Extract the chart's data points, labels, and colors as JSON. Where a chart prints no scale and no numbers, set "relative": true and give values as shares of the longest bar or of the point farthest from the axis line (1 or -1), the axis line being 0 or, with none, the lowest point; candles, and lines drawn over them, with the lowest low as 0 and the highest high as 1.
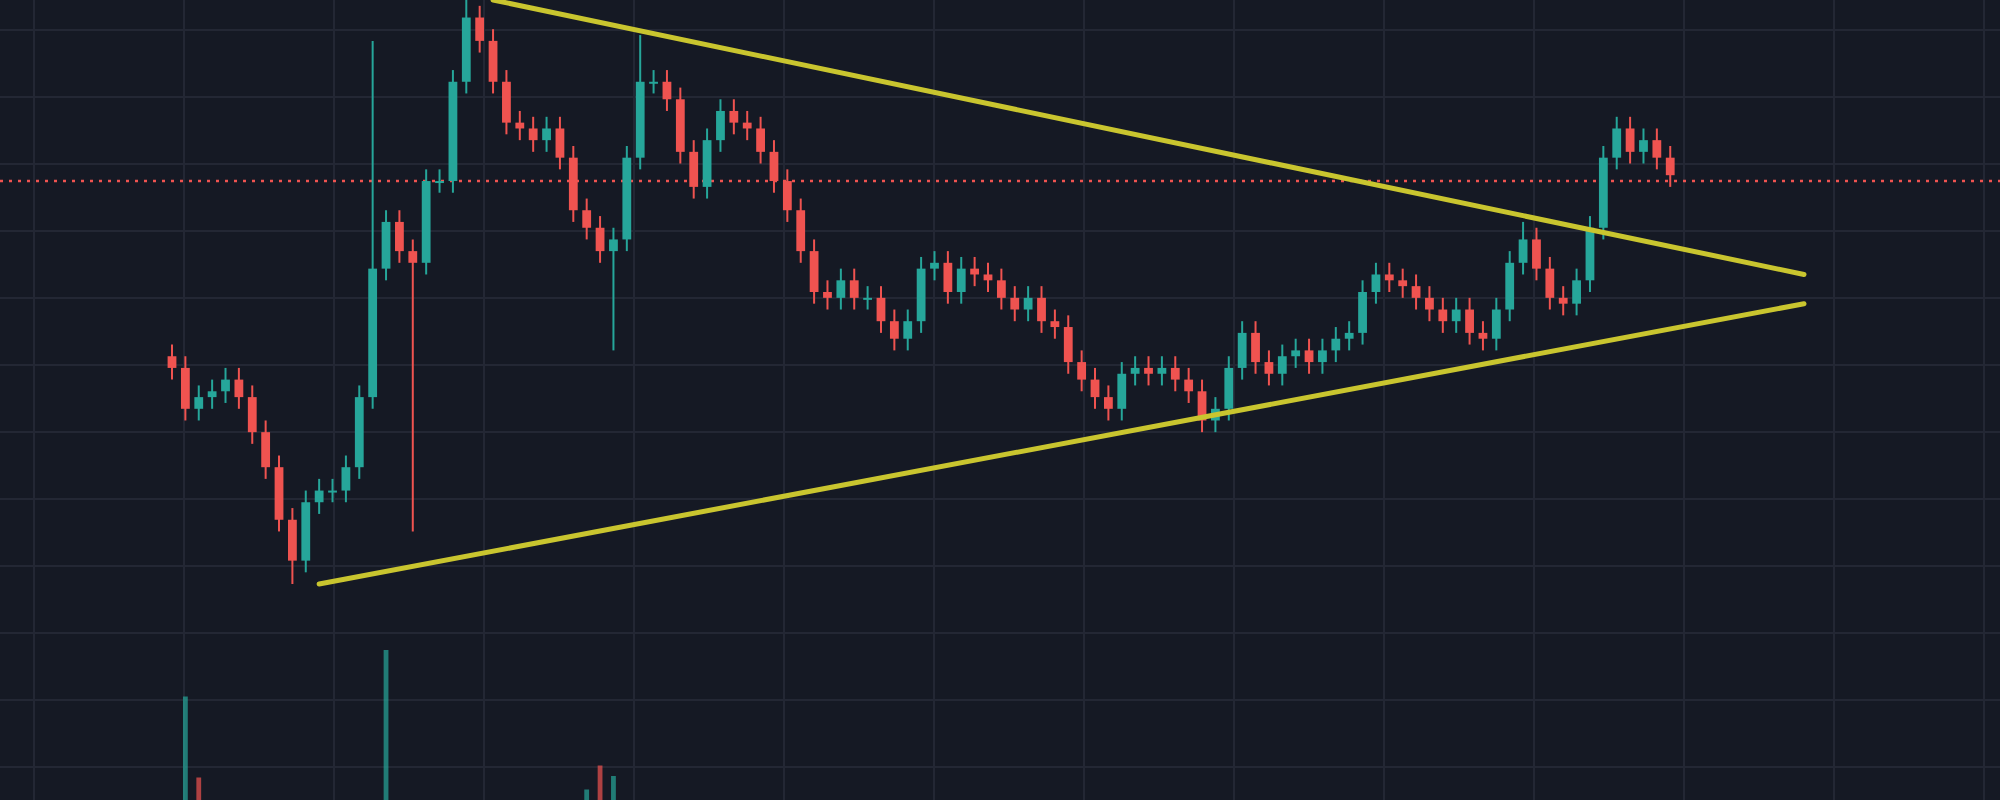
{
  "chart_data": [
    {
      "type": "candlestick",
      "relative": true,
      "grid": true,
      "categories": [
        null,
        null,
        null,
        null,
        null,
        null,
        null,
        null,
        null,
        null,
        null,
        null,
        null,
        null,
        null,
        null,
        null,
        null,
        null,
        null,
        null,
        null,
        null,
        null,
        null,
        null,
        null,
        null,
        null,
        null,
        null,
        null,
        null,
        null,
        null,
        null,
        null,
        null,
        null,
        null,
        null,
        null,
        null,
        null,
        null,
        null,
        null,
        null,
        null,
        null,
        null,
        null,
        null,
        null,
        null,
        null,
        null,
        null,
        null,
        null,
        null,
        null,
        null,
        null,
        null,
        null,
        null,
        null,
        null,
        null,
        null,
        null,
        null,
        null,
        null,
        null,
        null,
        null,
        null,
        null,
        null,
        null,
        null,
        null,
        null,
        null,
        null,
        null,
        null,
        null,
        null,
        null,
        null,
        null,
        null,
        null,
        null,
        null,
        null,
        null,
        null,
        null,
        null,
        null,
        null,
        null,
        null,
        null,
        null,
        null,
        null,
        null,
        null,
        null,
        null,
        null,
        null,
        null,
        null,
        null,
        null,
        null,
        null
      ],
      "ohlc": [
        [
          0.39,
          0.41,
          0.35,
          0.37
        ],
        [
          0.37,
          0.39,
          0.28,
          0.3
        ],
        [
          0.3,
          0.34,
          0.28,
          0.32
        ],
        [
          0.32,
          0.35,
          0.3,
          0.33
        ],
        [
          0.33,
          0.37,
          0.31,
          0.35
        ],
        [
          0.35,
          0.37,
          0.3,
          0.32
        ],
        [
          0.32,
          0.34,
          0.24,
          0.26
        ],
        [
          0.26,
          0.28,
          0.18,
          0.2
        ],
        [
          0.2,
          0.22,
          0.09,
          0.11
        ],
        [
          0.11,
          0.13,
          0.0,
          0.04
        ],
        [
          0.04,
          0.16,
          0.02,
          0.14
        ],
        [
          0.14,
          0.18,
          0.12,
          0.16
        ],
        [
          0.16,
          0.18,
          0.14,
          0.16
        ],
        [
          0.16,
          0.22,
          0.14,
          0.2
        ],
        [
          0.2,
          0.34,
          0.18,
          0.32
        ],
        [
          0.32,
          0.93,
          0.3,
          0.54
        ],
        [
          0.54,
          0.64,
          0.52,
          0.62
        ],
        [
          0.62,
          0.64,
          0.55,
          0.57
        ],
        [
          0.57,
          0.59,
          0.09,
          0.55
        ],
        [
          0.55,
          0.71,
          0.53,
          0.69
        ],
        [
          0.69,
          0.71,
          0.67,
          0.69
        ],
        [
          0.69,
          0.88,
          0.67,
          0.86
        ],
        [
          0.86,
          1.0,
          0.84,
          0.97
        ],
        [
          0.97,
          0.99,
          0.91,
          0.93
        ],
        [
          0.93,
          0.95,
          0.84,
          0.86
        ],
        [
          0.86,
          0.88,
          0.77,
          0.79
        ],
        [
          0.79,
          0.81,
          0.76,
          0.78
        ],
        [
          0.78,
          0.8,
          0.74,
          0.76
        ],
        [
          0.76,
          0.8,
          0.74,
          0.78
        ],
        [
          0.78,
          0.8,
          0.71,
          0.73
        ],
        [
          0.73,
          0.75,
          0.62,
          0.64
        ],
        [
          0.64,
          0.66,
          0.59,
          0.61
        ],
        [
          0.61,
          0.63,
          0.55,
          0.57
        ],
        [
          0.57,
          0.61,
          0.4,
          0.59
        ],
        [
          0.59,
          0.75,
          0.57,
          0.73
        ],
        [
          0.73,
          0.94,
          0.71,
          0.86
        ],
        [
          0.86,
          0.88,
          0.84,
          0.86
        ],
        [
          0.86,
          0.88,
          0.81,
          0.83
        ],
        [
          0.83,
          0.85,
          0.72,
          0.74
        ],
        [
          0.74,
          0.76,
          0.66,
          0.68
        ],
        [
          0.68,
          0.78,
          0.66,
          0.76
        ],
        [
          0.76,
          0.83,
          0.74,
          0.81
        ],
        [
          0.81,
          0.83,
          0.77,
          0.79
        ],
        [
          0.79,
          0.81,
          0.76,
          0.78
        ],
        [
          0.78,
          0.8,
          0.72,
          0.74
        ],
        [
          0.74,
          0.76,
          0.67,
          0.69
        ],
        [
          0.69,
          0.71,
          0.62,
          0.64
        ],
        [
          0.64,
          0.66,
          0.55,
          0.57
        ],
        [
          0.57,
          0.59,
          0.48,
          0.5
        ],
        [
          0.5,
          0.52,
          0.47,
          0.49
        ],
        [
          0.49,
          0.54,
          0.47,
          0.52
        ],
        [
          0.52,
          0.54,
          0.47,
          0.49
        ],
        [
          0.49,
          0.51,
          0.47,
          0.49
        ],
        [
          0.49,
          0.51,
          0.43,
          0.45
        ],
        [
          0.45,
          0.47,
          0.4,
          0.42
        ],
        [
          0.42,
          0.47,
          0.4,
          0.45
        ],
        [
          0.45,
          0.56,
          0.43,
          0.54
        ],
        [
          0.54,
          0.57,
          0.52,
          0.55
        ],
        [
          0.55,
          0.57,
          0.48,
          0.5
        ],
        [
          0.5,
          0.56,
          0.48,
          0.54
        ],
        [
          0.54,
          0.56,
          0.51,
          0.53
        ],
        [
          0.53,
          0.55,
          0.5,
          0.52
        ],
        [
          0.52,
          0.54,
          0.47,
          0.49
        ],
        [
          0.49,
          0.51,
          0.45,
          0.47
        ],
        [
          0.47,
          0.51,
          0.45,
          0.49
        ],
        [
          0.49,
          0.51,
          0.43,
          0.45
        ],
        [
          0.45,
          0.47,
          0.42,
          0.44
        ],
        [
          0.44,
          0.46,
          0.36,
          0.38
        ],
        [
          0.38,
          0.4,
          0.33,
          0.35
        ],
        [
          0.35,
          0.37,
          0.3,
          0.32
        ],
        [
          0.32,
          0.34,
          0.28,
          0.3
        ],
        [
          0.3,
          0.38,
          0.28,
          0.36
        ],
        [
          0.36,
          0.39,
          0.34,
          0.37
        ],
        [
          0.37,
          0.39,
          0.34,
          0.36
        ],
        [
          0.36,
          0.39,
          0.34,
          0.37
        ],
        [
          0.37,
          0.39,
          0.33,
          0.35
        ],
        [
          0.35,
          0.37,
          0.31,
          0.33
        ],
        [
          0.33,
          0.35,
          0.26,
          0.28
        ],
        [
          0.28,
          0.32,
          0.26,
          0.3
        ],
        [
          0.3,
          0.39,
          0.28,
          0.37
        ],
        [
          0.37,
          0.45,
          0.35,
          0.43
        ],
        [
          0.43,
          0.45,
          0.36,
          0.38
        ],
        [
          0.38,
          0.4,
          0.34,
          0.36
        ],
        [
          0.36,
          0.41,
          0.34,
          0.39
        ],
        [
          0.39,
          0.42,
          0.37,
          0.4
        ],
        [
          0.4,
          0.42,
          0.36,
          0.38
        ],
        [
          0.38,
          0.42,
          0.36,
          0.4
        ],
        [
          0.4,
          0.44,
          0.38,
          0.42
        ],
        [
          0.42,
          0.45,
          0.4,
          0.43
        ],
        [
          0.43,
          0.52,
          0.41,
          0.5
        ],
        [
          0.5,
          0.55,
          0.48,
          0.53
        ],
        [
          0.53,
          0.55,
          0.5,
          0.52
        ],
        [
          0.52,
          0.54,
          0.49,
          0.51
        ],
        [
          0.51,
          0.53,
          0.47,
          0.49
        ],
        [
          0.49,
          0.51,
          0.45,
          0.47
        ],
        [
          0.47,
          0.49,
          0.43,
          0.45
        ],
        [
          0.45,
          0.49,
          0.43,
          0.47
        ],
        [
          0.47,
          0.49,
          0.41,
          0.43
        ],
        [
          0.43,
          0.45,
          0.4,
          0.42
        ],
        [
          0.42,
          0.49,
          0.4,
          0.47
        ],
        [
          0.47,
          0.57,
          0.45,
          0.55
        ],
        [
          0.55,
          0.62,
          0.53,
          0.59
        ],
        [
          0.59,
          0.61,
          0.52,
          0.54
        ],
        [
          0.54,
          0.56,
          0.47,
          0.49
        ],
        [
          0.49,
          0.51,
          0.46,
          0.48
        ],
        [
          0.48,
          0.54,
          0.46,
          0.52
        ],
        [
          0.52,
          0.63,
          0.5,
          0.61
        ],
        [
          0.61,
          0.75,
          0.59,
          0.73
        ],
        [
          0.73,
          0.8,
          0.71,
          0.78
        ],
        [
          0.78,
          0.8,
          0.72,
          0.74
        ],
        [
          0.74,
          0.78,
          0.72,
          0.76
        ],
        [
          0.76,
          0.78,
          0.71,
          0.73
        ],
        [
          0.73,
          0.75,
          0.68,
          0.7
        ],
        null,
        null,
        null,
        null,
        null,
        null,
        null,
        null,
        null,
        null
      ],
      "series": [
        {
          "type": "line",
          "color": "#c9c52f",
          "values": [
            null,
            null,
            null,
            null,
            null,
            null,
            null,
            null,
            null,
            null,
            null,
            null,
            null,
            null,
            null,
            null,
            null,
            null,
            null,
            null,
            null,
            null,
            null,
            null,
            1.0,
            null,
            null,
            null,
            null,
            null,
            null,
            null,
            null,
            null,
            null,
            null,
            null,
            null,
            null,
            null,
            null,
            null,
            null,
            null,
            null,
            null,
            null,
            null,
            null,
            null,
            null,
            null,
            null,
            null,
            null,
            null,
            null,
            null,
            null,
            null,
            null,
            null,
            null,
            null,
            null,
            null,
            null,
            null,
            null,
            null,
            null,
            null,
            null,
            null,
            null,
            null,
            null,
            null,
            null,
            null,
            null,
            null,
            null,
            null,
            null,
            null,
            null,
            null,
            null,
            null,
            null,
            null,
            null,
            null,
            null,
            null,
            null,
            null,
            null,
            null,
            null,
            null,
            null,
            null,
            null,
            null,
            null,
            null,
            null,
            null,
            null,
            null,
            null,
            null,
            null,
            null,
            null,
            null,
            null,
            null,
            null,
            null,
            0.53
          ]
        },
        {
          "type": "line",
          "color": "#c9c52f",
          "values": [
            null,
            null,
            null,
            null,
            null,
            null,
            null,
            null,
            null,
            null,
            null,
            0.0,
            null,
            null,
            null,
            null,
            null,
            null,
            null,
            null,
            null,
            null,
            null,
            null,
            null,
            null,
            null,
            null,
            null,
            null,
            null,
            null,
            null,
            null,
            null,
            null,
            null,
            null,
            null,
            null,
            null,
            null,
            null,
            null,
            null,
            null,
            null,
            null,
            null,
            null,
            null,
            null,
            null,
            null,
            null,
            null,
            null,
            null,
            null,
            null,
            null,
            null,
            null,
            null,
            null,
            null,
            null,
            null,
            null,
            null,
            null,
            null,
            null,
            null,
            null,
            null,
            null,
            null,
            null,
            null,
            null,
            null,
            null,
            null,
            null,
            null,
            null,
            null,
            null,
            null,
            null,
            null,
            null,
            null,
            null,
            null,
            null,
            null,
            null,
            null,
            null,
            null,
            null,
            null,
            null,
            null,
            null,
            null,
            null,
            null,
            null,
            null,
            null,
            null,
            null,
            null,
            null,
            null,
            null,
            null,
            null,
            null,
            0.48
          ]
        }
      ],
      "ref_lines": [
        {
          "axis": "y",
          "value": 0.69,
          "color": "#ef5350",
          "line_style": "dotted"
        }
      ]
    },
    {
      "type": "bar",
      "relative": true,
      "grid": true,
      "categories": [
        null,
        null,
        null,
        null,
        null,
        null,
        null,
        null,
        null,
        null,
        null,
        null,
        null,
        null,
        null,
        null,
        null,
        null,
        null,
        null,
        null,
        null,
        null,
        null,
        null,
        null,
        null,
        null,
        null,
        null,
        null,
        null,
        null,
        null,
        null,
        null,
        null,
        null,
        null,
        null,
        null,
        null,
        null,
        null,
        null,
        null,
        null,
        null,
        null,
        null,
        null,
        null,
        null,
        null,
        null,
        null,
        null,
        null,
        null,
        null,
        null,
        null,
        null,
        null,
        null,
        null,
        null,
        null,
        null,
        null,
        null,
        null,
        null,
        null,
        null,
        null,
        null,
        null,
        null,
        null,
        null,
        null,
        null,
        null,
        null,
        null,
        null,
        null,
        null,
        null,
        null,
        null,
        null,
        null,
        null,
        null,
        null,
        null,
        null,
        null,
        null,
        null,
        null,
        null,
        null,
        null,
        null,
        null,
        null,
        null,
        null,
        null,
        null,
        null,
        null,
        null,
        null,
        null,
        null,
        null,
        null,
        null,
        null
      ],
      "values": [
        null,
        0.69,
        0.15,
        null,
        null,
        null,
        null,
        null,
        null,
        null,
        null,
        null,
        null,
        null,
        null,
        null,
        1.0,
        null,
        null,
        null,
        null,
        null,
        null,
        null,
        null,
        null,
        null,
        null,
        null,
        null,
        null,
        0.07,
        0.23,
        0.16,
        null,
        null,
        null,
        null,
        null,
        null,
        null,
        null,
        null,
        null,
        null,
        null,
        null,
        null,
        null,
        null,
        null,
        null,
        null,
        null,
        null,
        null,
        null,
        null,
        null,
        null,
        null,
        null,
        null,
        null,
        null,
        null,
        null,
        null,
        null,
        null,
        null,
        null,
        null,
        null,
        null,
        null,
        null,
        null,
        null,
        null,
        null,
        null,
        null,
        null,
        null,
        null,
        null,
        null,
        null,
        null,
        null,
        null,
        null,
        null,
        null,
        null,
        null,
        null,
        null,
        null,
        null,
        null,
        null,
        null,
        null,
        null,
        null,
        null,
        null,
        null,
        null,
        null,
        null,
        null,
        null,
        null,
        null,
        null,
        null,
        null,
        null,
        null,
        null
      ],
      "colors": [
        null,
        "#26a69a",
        "#ef5350",
        null,
        null,
        null,
        null,
        null,
        null,
        null,
        null,
        null,
        null,
        null,
        null,
        null,
        "#26a69a",
        null,
        null,
        null,
        null,
        null,
        null,
        null,
        null,
        null,
        null,
        null,
        null,
        null,
        null,
        "#26a69a",
        "#ef5350",
        "#26a69a",
        null,
        null,
        null,
        null,
        null,
        null,
        null,
        null,
        null,
        null,
        null,
        null,
        null,
        null,
        null,
        null,
        null,
        null,
        null,
        null,
        null,
        null,
        null,
        null,
        null,
        null,
        null,
        null,
        null,
        null,
        null,
        null,
        null,
        null,
        null,
        null,
        null,
        null,
        null,
        null,
        null,
        null,
        null,
        null,
        null,
        null,
        null,
        null,
        null,
        null,
        null,
        null,
        null,
        null,
        null,
        null,
        null,
        null,
        null,
        null,
        null,
        null,
        null,
        null,
        null,
        null,
        null,
        null,
        null,
        null,
        null,
        null,
        null,
        null,
        null,
        null,
        null,
        null,
        null,
        null,
        null,
        null,
        null,
        null,
        null,
        null,
        null,
        null,
        null
      ]
    }
  ]
}
